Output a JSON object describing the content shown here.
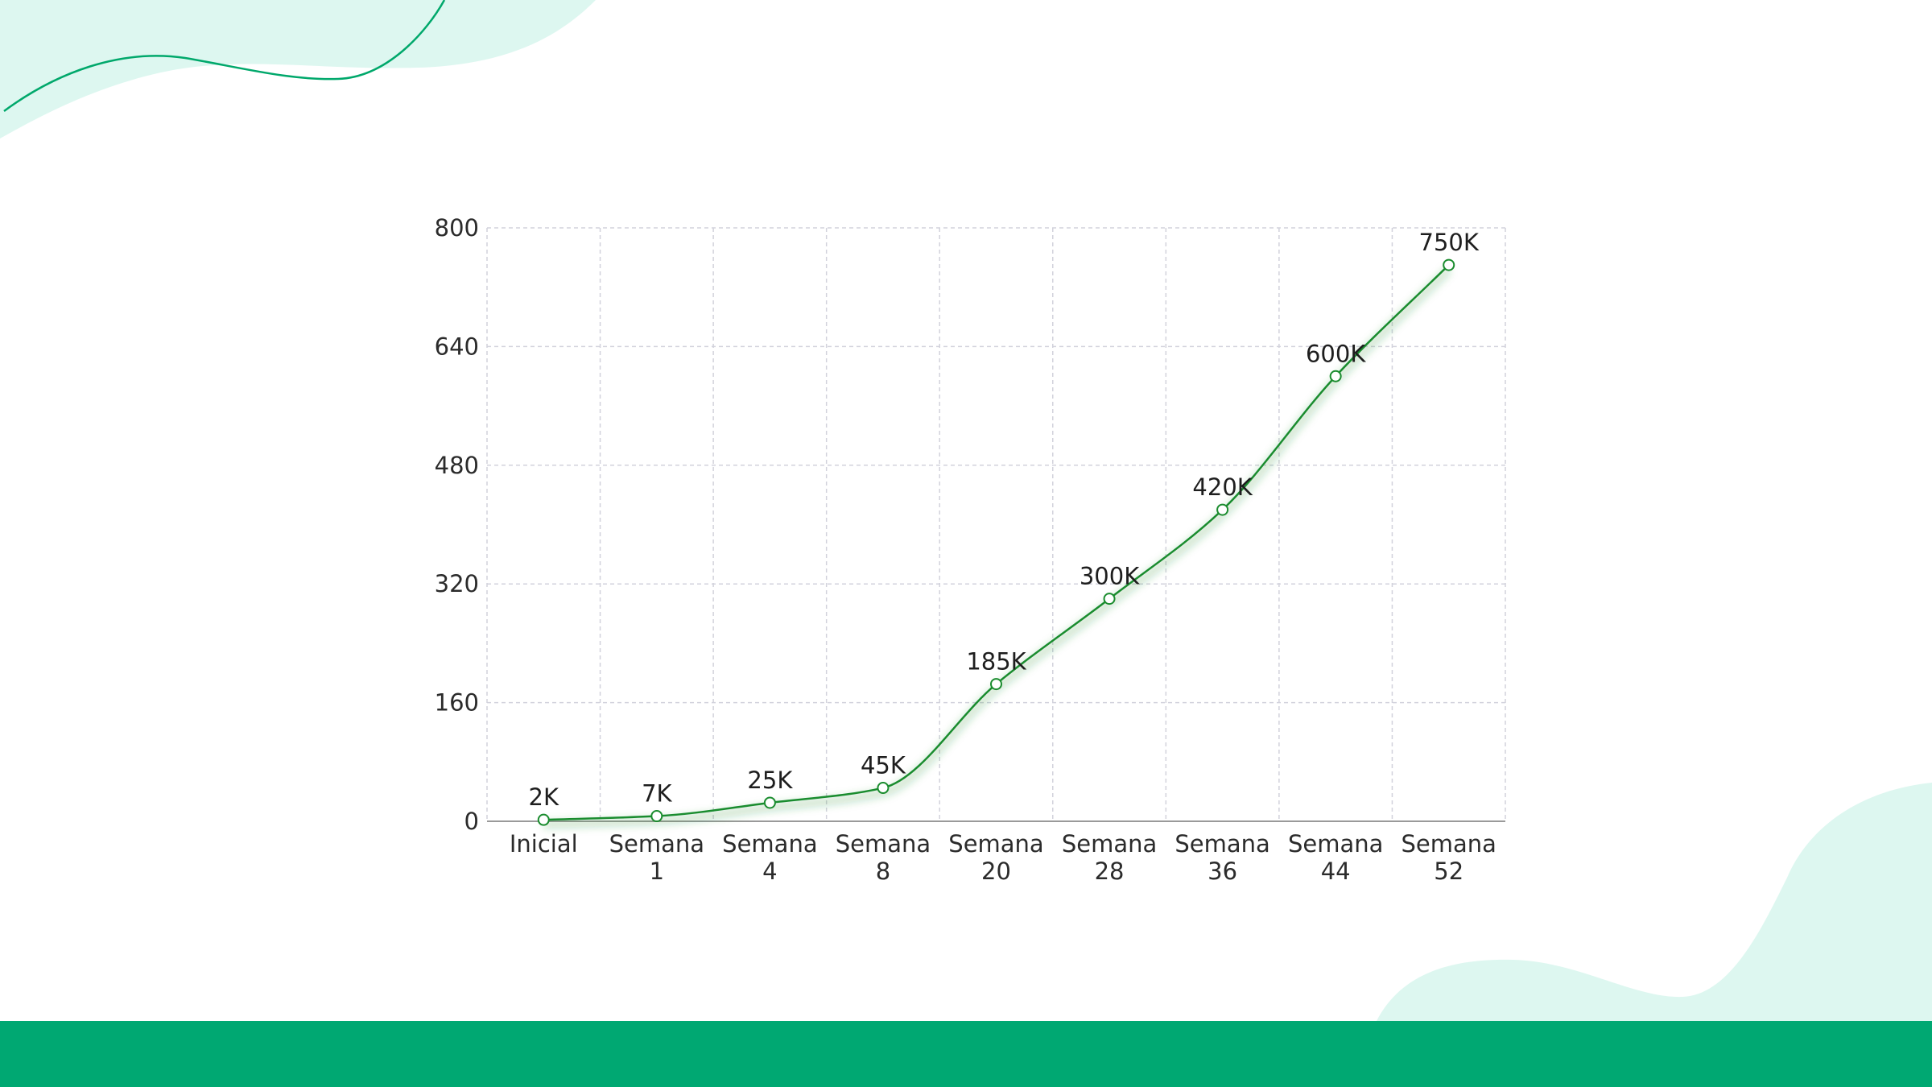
{
  "colors": {
    "line": "#1a8c2e",
    "marker_fill": "#ffffff",
    "grid": "#d2d2dc",
    "axis": "#9a9a9a",
    "accent_light": "#ddf7f0",
    "accent_band": "#00a872",
    "accent_stroke": "#00a86b"
  },
  "chart_data": {
    "type": "line",
    "title": "",
    "xlabel": "",
    "ylabel": "",
    "categories": [
      [
        "Inicial"
      ],
      [
        "Semana",
        "1"
      ],
      [
        "Semana",
        "4"
      ],
      [
        "Semana",
        "8"
      ],
      [
        "Semana",
        "20"
      ],
      [
        "Semana",
        "28"
      ],
      [
        "Semana",
        "36"
      ],
      [
        "Semana",
        "44"
      ],
      [
        "Semana",
        "52"
      ]
    ],
    "values": [
      2,
      7,
      25,
      45,
      185,
      300,
      420,
      600,
      750
    ],
    "data_labels": [
      "2K",
      "7K",
      "25K",
      "45K",
      "185K",
      "300K",
      "420K",
      "600K",
      "750K"
    ],
    "yticks": [
      "0",
      "160",
      "320",
      "480",
      "640",
      "800"
    ],
    "ylim": [
      0,
      800
    ],
    "grid": true,
    "smooth": true,
    "legend": "none"
  }
}
